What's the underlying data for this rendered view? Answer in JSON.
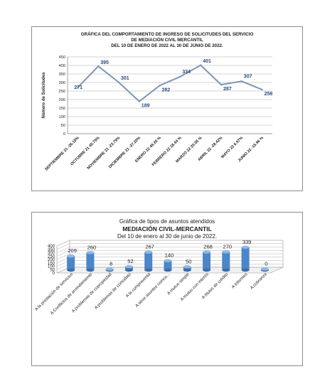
{
  "chart_data": [
    {
      "type": "line",
      "title_lines": [
        "GRÁFICA DEL COMPORTAMIENTO  DE  INGRESO DE SOLICITUDES DEL SERVICIO",
        "DE MEDIACIÓN CIVIL  MERCANTIL",
        "DEL  10 DE ENERO DE 2022   AL   30  DE JUNIO  DE  2022."
      ],
      "ylabel": "Número de Solicitudes",
      "ylim": [
        0,
        450
      ],
      "yticks": [
        0,
        50,
        100,
        150,
        200,
        250,
        300,
        350,
        400,
        450
      ],
      "grid": true,
      "categories": [
        "SEPTIEMBRE  21  -26.15%",
        "OCTUBRE  21  45.75%",
        "NOVIEMBRE  21  -23.79%",
        "DICIEMBRE  21  -37.20%",
        "ENERO   22   49.20 %",
        "FEBRERO   22   18.44 %",
        "MARZO  22  20.05  %",
        "ABRIL   22   -28.42%",
        "MAYO   22   6.97%",
        "JUNIO   22   -15.96 %"
      ],
      "values": [
        271,
        395,
        301,
        189,
        282,
        334,
        401,
        287,
        307,
        258
      ],
      "color": "#7f95b5",
      "label_color": "#2a4a7a"
    },
    {
      "type": "bar",
      "title_lines": [
        "Gráfica de tipos de asuntos atendidos",
        "MEDIACIÓN CIVIL-MERCANTIL",
        "Del  10 de enero al  30 de junio de  2022."
      ],
      "ylim": [
        0,
        400
      ],
      "yticks": [
        0,
        50,
        100,
        150,
        200,
        250,
        300,
        350,
        400
      ],
      "categories": [
        "A la prestación de servicios",
        "A Conflictos de arrendamiento",
        "A problemas de copropiedad",
        "A problemas de comodato",
        "A la compraventa",
        "A otros asuntos comco...",
        "A mutuo simple",
        "A mutuo con interés",
        "A títulos de crédito",
        "A informes",
        "A cobranza"
      ],
      "values": [
        209,
        260,
        8,
        52,
        267,
        140,
        50,
        268,
        270,
        339,
        0
      ],
      "color": "#4a86c8"
    }
  ]
}
